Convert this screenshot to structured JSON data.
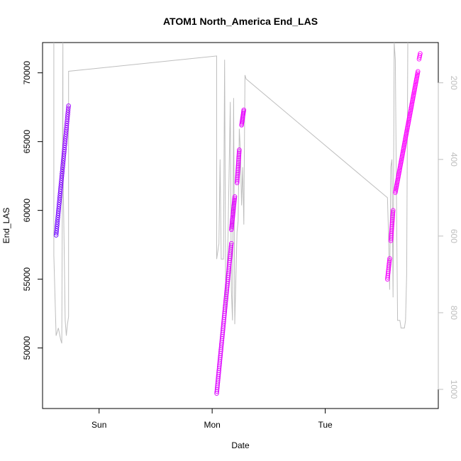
{
  "chart_data": {
    "type": "scatter",
    "title": "ATOM1 North_America End_LAS",
    "xlabel": "Date",
    "ylabel": "End_LAS",
    "x_unit": "days",
    "xlim": [
      0.0,
      3.5
    ],
    "ylim": [
      45600,
      72200
    ],
    "y2lim": [
      1050,
      95
    ],
    "x_ticks": [
      {
        "value": 0.5,
        "label": "Sun"
      },
      {
        "value": 1.5,
        "label": "Mon"
      },
      {
        "value": 2.5,
        "label": "Tue"
      }
    ],
    "y_ticks": [
      50000,
      55000,
      60000,
      65000,
      70000
    ],
    "y2_ticks": [
      200,
      400,
      600,
      800,
      1000
    ],
    "colors": {
      "axis": "#000000",
      "secondary_axis": "#bebebe",
      "secondary_line": "#bebebe",
      "point_start": "#0000ff",
      "point_end": "#ff00ff"
    },
    "point_segments": [
      {
        "x_start": 0.12,
        "x_end": 0.23,
        "y_start": 58200,
        "y_end": 67600,
        "n": 60,
        "color_from": 0.42,
        "color_to": 0.62
      },
      {
        "x_start": 1.54,
        "x_end": 1.67,
        "y_start": 46700,
        "y_end": 57600,
        "n": 80,
        "color_from": 0.86,
        "color_to": 0.88
      },
      {
        "x_start": 1.67,
        "x_end": 1.7,
        "y_start": 58600,
        "y_end": 61000,
        "n": 22,
        "color_from": 0.88,
        "color_to": 0.89
      },
      {
        "x_start": 1.72,
        "x_end": 1.74,
        "y_start": 62000,
        "y_end": 64400,
        "n": 20,
        "color_from": 0.89,
        "color_to": 0.9
      },
      {
        "x_start": 1.76,
        "x_end": 1.78,
        "y_start": 66200,
        "y_end": 67300,
        "n": 12,
        "color_from": 0.9,
        "color_to": 0.9
      },
      {
        "x_start": 3.05,
        "x_end": 3.07,
        "y_start": 55000,
        "y_end": 56500,
        "n": 12,
        "color_from": 0.96,
        "color_to": 0.96
      },
      {
        "x_start": 3.08,
        "x_end": 3.1,
        "y_start": 57800,
        "y_end": 60000,
        "n": 18,
        "color_from": 0.96,
        "color_to": 0.97
      },
      {
        "x_start": 3.12,
        "x_end": 3.32,
        "y_start": 61300,
        "y_end": 70100,
        "n": 80,
        "color_from": 0.97,
        "color_to": 1.0
      },
      {
        "x_start": 3.33,
        "x_end": 3.34,
        "y_start": 71000,
        "y_end": 71400,
        "n": 4,
        "color_from": 1.0,
        "color_to": 1.0
      }
    ],
    "secondary_series": {
      "name": "",
      "points": [
        [
          0.1,
          95
        ],
        [
          0.1,
          650
        ],
        [
          0.12,
          860
        ],
        [
          0.14,
          840
        ],
        [
          0.16,
          870
        ],
        [
          0.17,
          880
        ],
        [
          0.18,
          95
        ],
        [
          0.18,
          400
        ],
        [
          0.2,
          820
        ],
        [
          0.21,
          860
        ],
        [
          0.22,
          830
        ],
        [
          0.23,
          810
        ],
        [
          0.23,
          170
        ],
        [
          1.54,
          130
        ],
        [
          1.54,
          660
        ],
        [
          1.56,
          620
        ],
        [
          1.57,
          400
        ],
        [
          1.58,
          660
        ],
        [
          1.6,
          660
        ],
        [
          1.61,
          140
        ],
        [
          1.62,
          800
        ],
        [
          1.64,
          600
        ],
        [
          1.66,
          250
        ],
        [
          1.67,
          740
        ],
        [
          1.68,
          820
        ],
        [
          1.69,
          240
        ],
        [
          1.7,
          830
        ],
        [
          1.72,
          590
        ],
        [
          1.73,
          560
        ],
        [
          1.74,
          320
        ],
        [
          1.75,
          380
        ],
        [
          1.76,
          520
        ],
        [
          1.77,
          420
        ],
        [
          1.78,
          570
        ],
        [
          1.79,
          180
        ],
        [
          1.8,
          190
        ],
        [
          3.05,
          500
        ],
        [
          3.06,
          600
        ],
        [
          3.07,
          740
        ],
        [
          3.08,
          420
        ],
        [
          3.09,
          400
        ],
        [
          3.1,
          760
        ],
        [
          3.11,
          95
        ],
        [
          3.12,
          140
        ],
        [
          3.13,
          500
        ],
        [
          3.14,
          820
        ],
        [
          3.16,
          820
        ],
        [
          3.17,
          840
        ],
        [
          3.2,
          840
        ],
        [
          3.21,
          820
        ],
        [
          3.22,
          700
        ],
        [
          3.23,
          95
        ]
      ]
    }
  }
}
